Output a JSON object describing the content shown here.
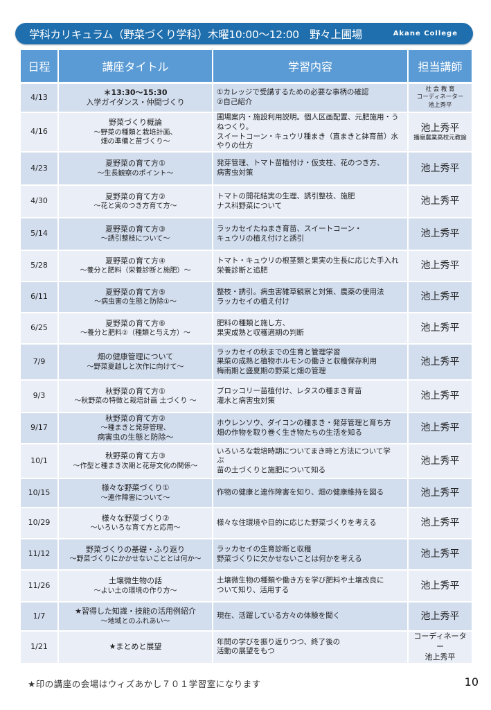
{
  "banner": {
    "title": "学科カリキュラム（野菜づくり学科）木曜10:00～12:00　野々上圃場",
    "college": "Akane College"
  },
  "table": {
    "headers": [
      "日程",
      "講座タイトル",
      "学習内容",
      "担当講師"
    ],
    "rows": [
      {
        "date": "4/13",
        "title": [
          "＊13:30～15:30",
          "入学ガイダンス・仲間づくり"
        ],
        "content": [
          "①カレッジで受講するための必要な事柄の確認",
          "②自己紹介"
        ],
        "teacher": [
          "社 会 教 育",
          "コーディネーター",
          "池上秀平"
        ]
      },
      {
        "date": "4/16",
        "title": [
          "野菜づくり概論",
          "～野菜の種類と栽培計画、",
          "畑の準備と苗づくり～"
        ],
        "content": [
          "圃場案内・施設利用説明。個人区画配置、元肥施用・うねつくり。",
          "スイートコーン・キュウリ種まき（直まきと鉢育苗）水やりの仕方"
        ],
        "teacher": [
          "池上秀平",
          "播磨農業高校元教諭"
        ]
      },
      {
        "date": "4/23",
        "title": [
          "夏野菜の育て方①",
          "～生長観察のポイント～"
        ],
        "content": [
          "発芽管理、トマト苗植付け・仮支柱、花のつき方、",
          "病害虫対策"
        ],
        "teacher": [
          "池上秀平"
        ]
      },
      {
        "date": "4/30",
        "title": [
          "夏野菜の育て方②",
          "～花と実のつき方育て方～"
        ],
        "content": [
          "トマトの開花結実の生理、誘引整枝、施肥",
          "ナス科野菜について"
        ],
        "teacher": [
          "池上秀平"
        ]
      },
      {
        "date": "5/14",
        "title": [
          "夏野菜の育て方③",
          "～誘引整枝について～"
        ],
        "content": [
          "ラッカセイたねまき育苗、スイートコーン・",
          "キュウリの植え付けと誘引"
        ],
        "teacher": [
          "池上秀平"
        ]
      },
      {
        "date": "5/28",
        "title": [
          "夏野菜の育て方④",
          "～養分と肥料（栄養診断と施肥）～"
        ],
        "content": [
          "トマト・キュウリの根茎類と果実の生長に応じた手入れ",
          "栄養診断と追肥"
        ],
        "teacher": [
          "池上秀平"
        ]
      },
      {
        "date": "6/11",
        "title": [
          "夏野菜の育て方⑤",
          "～病虫害の生態と防除①～"
        ],
        "content": [
          "整枝・誘引。病虫害雑草観察と対策、農薬の使用法",
          "ラッカセイの植え付け"
        ],
        "teacher": [
          "池上秀平"
        ]
      },
      {
        "date": "6/25",
        "title": [
          "夏野菜の育て方⑥",
          "～養分と肥料②（種類と与え方）～"
        ],
        "content": [
          "肥料の種類と施し方、",
          "果実成熟と収穫適期の判断"
        ],
        "teacher": [
          "池上秀平"
        ]
      },
      {
        "date": "7/9",
        "title": [
          "畑の健康管理について",
          "～野菜夏越しと次作に向けて～"
        ],
        "content": [
          "ラッカセイの秋までの生育と管理学習",
          "果菜の成熟と植物ホルモンの働きと収穫保存利用",
          "梅雨期と盛夏期の野菜と畑の管理"
        ],
        "teacher": [
          "池上秀平"
        ]
      },
      {
        "date": "9/3",
        "title": [
          "秋野菜の育て方①",
          "～秋野菜の特徴と栽培計画 土づくり ～"
        ],
        "content": [
          "ブロッコリー苗植付け、レタスの種まき育苗",
          "灌水と病害虫対策"
        ],
        "teacher": [
          "池上秀平"
        ]
      },
      {
        "date": "9/17",
        "title": [
          "秋野菜の育て方②",
          "～種まきと発芽管理、",
          "病害虫の生態と防除～"
        ],
        "content": [
          "ホウレンソウ、ダイコンの種まき・発芽管理と育ち方",
          "畑の作物を取り巻く生き物たちの生活を知る"
        ],
        "teacher": [
          "池上秀平"
        ]
      },
      {
        "date": "10/1",
        "title": [
          "秋野菜の育て方③",
          "～作型と種まき次期と花芽文化の関係～"
        ],
        "content": [
          "いろいろな栽培時期についてまき時と方法について学",
          "ぶ",
          "苗の土づくりと施肥について知る"
        ],
        "teacher": [
          "池上秀平"
        ]
      },
      {
        "date": "10/15",
        "title": [
          "様々な野菜づくり①",
          "～連作障害について～"
        ],
        "content": [
          "作物の健康と連作障害を知り、畑の健康維持を図る"
        ],
        "teacher": [
          "池上秀平"
        ]
      },
      {
        "date": "10/29",
        "title": [
          "様々な野菜づくり②",
          "～いろいろな育て方と応用～"
        ],
        "content": [
          "様々な住環境や目的に応じた野菜づくりを考える"
        ],
        "teacher": [
          "池上秀平"
        ]
      },
      {
        "date": "11/12",
        "title": [
          "野菜づくりの基礎・ふり返り",
          "～野菜づくりにかかせないこととは何か～"
        ],
        "content": [
          "ラッカセイの生育診断と収穫",
          "野菜づくりに欠かせないことは何かを考える"
        ],
        "teacher": [
          "池上秀平"
        ]
      },
      {
        "date": "11/26",
        "title": [
          "土壌微生物の話",
          "～よい土の環境の作り方～"
        ],
        "content": [
          "土壌微生物の種類や働き方を学び肥料や土壌改良に",
          "ついて知り、活用する"
        ],
        "teacher": [
          "池上秀平"
        ]
      },
      {
        "date": "1/7",
        "title": [
          "★習得した知識・技能の活用例紹介",
          "～地域とのふれあい～"
        ],
        "content": [
          "現在、活躍している方々の体験を聞く"
        ],
        "teacher": [
          "池上秀平"
        ]
      },
      {
        "date": "1/21",
        "title": [
          "★まとめと展望"
        ],
        "content": [
          "年間の学びを振り返りつつ、終了後の",
          "活動の展望をもつ"
        ],
        "teacher": [
          "コーディネーター",
          "池上秀平"
        ]
      }
    ]
  },
  "footer": {
    "note": "★印の講座の会場はウィズあかし７０１学習室になります",
    "page_number": "10"
  },
  "colors": {
    "banner": "#1f6fae",
    "header": "#5b9bd5",
    "row_dark": "#d2ddee",
    "row_light": "#e9eef7"
  }
}
